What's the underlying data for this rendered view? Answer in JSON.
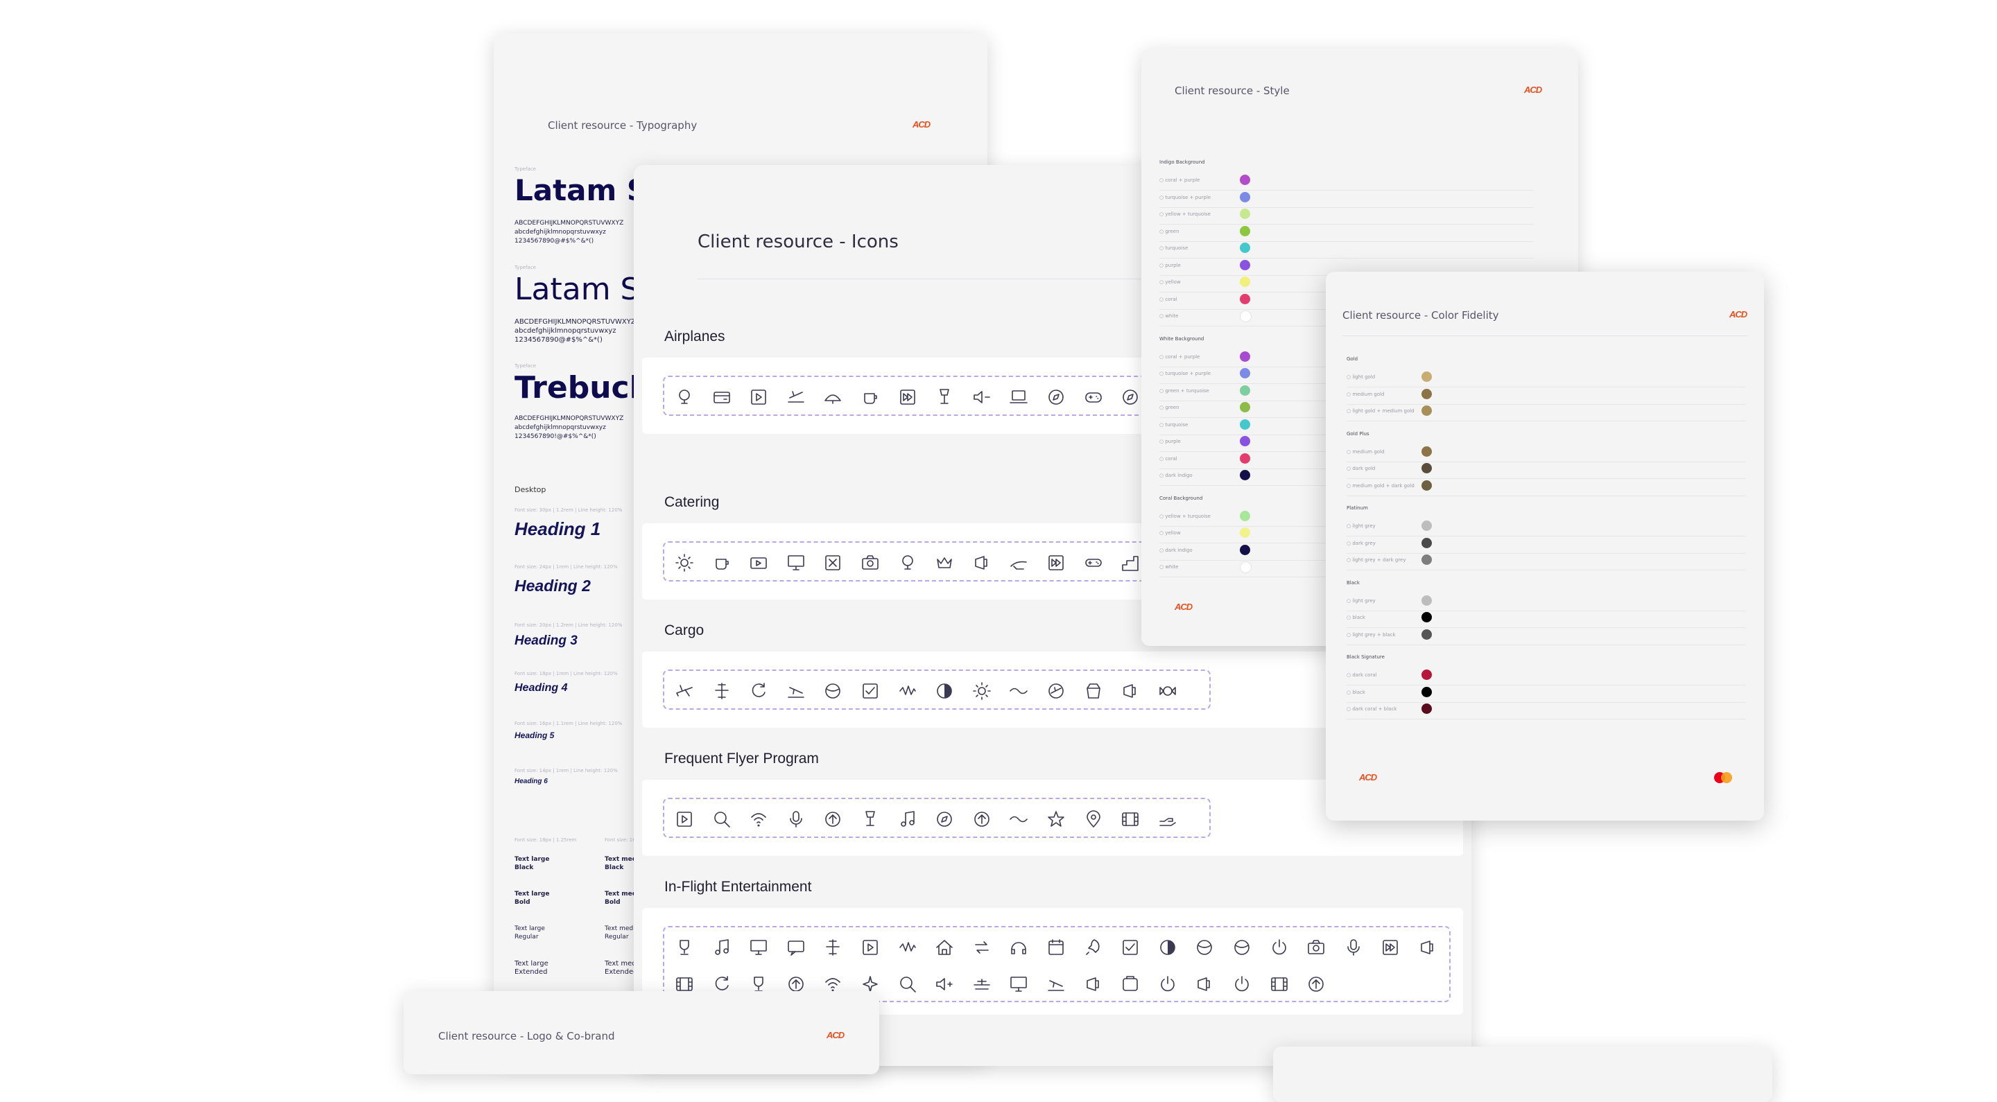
{
  "brand_logo": "ACD",
  "typography": {
    "title": "Client resource - Typography",
    "sections": [
      {
        "label": "Typeface",
        "name": "Latam Sa",
        "chars": [
          "ABCDEFGHIJKLMNOPQRSTUVWXYZ",
          "abcdefghijklmnopqrstuvwxyz",
          "1234567890@#$%^&*()"
        ]
      },
      {
        "label": "Typeface",
        "name": "Latam S",
        "chars": [
          "ABCDEFGHIJKLMNOPQRSTUVWXYZ",
          "abcdefghijklmnopqrstuvwxyz",
          "1234567890@#$%^&*()"
        ]
      },
      {
        "label": "Typeface",
        "name": "Trebuch",
        "chars": [
          "ABCDEFGHIJKLMNOPQRSTUVWXYZ",
          "abcdefghijklmnopqrstuvwxyz",
          "1234567890!@#$%^&*()"
        ]
      }
    ],
    "desktop_label": "Desktop",
    "headings": [
      {
        "meta": "Font size: 30px | 1.2rem | Line height: 120%",
        "text": "Heading 1"
      },
      {
        "meta": "Font size: 24px | 1rem | Line height: 120%",
        "text": "Heading 2"
      },
      {
        "meta": "Font size: 20px | 1.2rem | Line height: 120%",
        "text": "Heading 3"
      },
      {
        "meta": "Font size: 18px | 1rem | Line height: 120%",
        "text": "Heading 4"
      },
      {
        "meta": "Font size: 16px | 1.1rem | Line height: 120%",
        "text": "Heading 5"
      },
      {
        "meta": "Font size: 14px | 1rem | Line height: 120%",
        "text": "Heading 6"
      }
    ],
    "text_styles_left": [
      {
        "meta": "Font size: 18px | 1.25rem",
        "l1": "Text large",
        "l2": "Black"
      },
      {
        "meta": "",
        "l1": "Text large",
        "l2": "Bold"
      },
      {
        "meta": "",
        "l1": "Text large",
        "l2": "Regular"
      },
      {
        "meta": "",
        "l1": "Text large",
        "l2": "Extended"
      }
    ],
    "text_styles_right": [
      {
        "meta": "Font size: 16px",
        "l1": "Text medium",
        "l2": "Black"
      },
      {
        "meta": "",
        "l1": "Text medium",
        "l2": "Bold"
      },
      {
        "meta": "",
        "l1": "Text medium",
        "l2": "Regular"
      },
      {
        "meta": "",
        "l1": "Text medium",
        "l2": "Extended"
      }
    ]
  },
  "icons_card": {
    "title": "Client resource - Icons",
    "sections": [
      {
        "title": "Airplanes",
        "icons": [
          "plane-takeoff-icon",
          "globe-plane-icon",
          "globe-route-icon",
          "plane-rotate-icon",
          "plane-dome-icon",
          "plane-departure-icon",
          "plane-arrival-icon",
          "plane-ground-icon",
          "calendar-plane-icon",
          "heart-plane-icon",
          "plane-hand-icon",
          "plane-crown-icon",
          "plane-wave-icon",
          "plane-hand-left-icon",
          "plane-ticket-icon"
        ]
      },
      {
        "title": "Catering",
        "icons": [
          "cocktail-icon",
          "coffee-cup-icon",
          "soup-bowl-icon",
          "cutlery-icon",
          "bottles-icon",
          "tea-cup-icon",
          "candy-icon",
          "fish-icon",
          "bread-icon",
          "cheese-icon",
          "juice-box-icon",
          "jar-icon",
          "dish-icon"
        ]
      },
      {
        "title": "Cargo",
        "icons": [
          "ramp-icon",
          "plane-rotate-icon",
          "pet-icon",
          "flower-box-icon",
          "link-icon",
          "at-sign-icon",
          "boxes-icon",
          "diamond-icon",
          "package-icon",
          "secure-box-icon",
          "vaccine-icon",
          "horse-icon",
          "delivery-box-icon",
          "lock-tag-icon"
        ]
      },
      {
        "title": "Frequent Flyer Program",
        "icons": [
          "lightbulb-icon",
          "podium-icon",
          "hand-coins-icon",
          "star-icon",
          "rocket-icon",
          "compass-icon",
          "trophy-icon",
          "exchange-icon",
          "chat-icon",
          "location-pin-icon",
          "search-icon",
          "hand-swap-icon",
          "sparkle-icon",
          "hand-plane-icon"
        ]
      },
      {
        "title": "In-Flight Entertainment",
        "icons": [
          "gamepad-icon",
          "wifi-icon",
          "wallet-icon",
          "video-card-icon",
          "headphones-icon",
          "volume-up-icon",
          "volume-down-icon",
          "mute-icon",
          "play-icon",
          "music-note-icon",
          "close-box-icon",
          "check-box-icon",
          "play-box-icon",
          "pause-box-icon",
          "stop-box-icon",
          "book-icon",
          "eject-box-icon",
          "forward-box-icon",
          "rewind-box-icon",
          "brightness-icon",
          "contrast-icon",
          "speaker-icon",
          "lightbulb-icon",
          "microphone-icon",
          "film-icon",
          "power-icon",
          "laptop-icon",
          "monitor-icon",
          "tv-icon",
          "screen-icon",
          "radio-icon",
          "camera-icon",
          "usb-icon",
          "controller-icon",
          "wave-icon",
          "home-icon",
          "refresh-icon",
          "upload-icon",
          "download-icon"
        ]
      }
    ]
  },
  "style_card": {
    "title": "Client resource - Style",
    "groups": [
      {
        "label": "Indigo Background",
        "items": [
          {
            "name": "coral + purple",
            "color": "#b44bc9"
          },
          {
            "name": "turquoise + purple",
            "color": "#7a8ae6"
          },
          {
            "name": "yellow + turquoise",
            "color": "#c8e890"
          },
          {
            "name": "green",
            "color": "#8dc63f"
          },
          {
            "name": "turquoise",
            "color": "#45c8cc"
          },
          {
            "name": "purple",
            "color": "#8a52e0"
          },
          {
            "name": "yellow",
            "color": "#f0f07a"
          },
          {
            "name": "coral",
            "color": "#e43c6e"
          },
          {
            "name": "white",
            "color": "#ffffff"
          }
        ]
      },
      {
        "label": "White Background",
        "items": [
          {
            "name": "coral + purple",
            "color": "#a84bd0"
          },
          {
            "name": "turquoise + purple",
            "color": "#7a8ae6"
          },
          {
            "name": "green + turquoise",
            "color": "#7dcfa0"
          },
          {
            "name": "green",
            "color": "#8dbb48"
          },
          {
            "name": "turquoise",
            "color": "#45c8cc"
          },
          {
            "name": "purple",
            "color": "#8a52e0"
          },
          {
            "name": "coral",
            "color": "#e43c6e"
          },
          {
            "name": "dark indigo",
            "color": "#14104a"
          }
        ]
      },
      {
        "label": "Coral Background",
        "items": [
          {
            "name": "yellow + turquoise",
            "color": "#a8e69a"
          },
          {
            "name": "yellow",
            "color": "#f2f28c"
          },
          {
            "name": "dark indigo",
            "color": "#14104a"
          },
          {
            "name": "white",
            "color": "#ffffff"
          }
        ]
      }
    ]
  },
  "color_card": {
    "title": "Client resource - Color Fidelity",
    "groups": [
      {
        "label": "Gold",
        "items": [
          {
            "name": "light gold",
            "color": "#c8ad72"
          },
          {
            "name": "medium gold",
            "color": "#8c7446"
          },
          {
            "name": "light gold + medium gold",
            "color": "#a88f5a"
          }
        ]
      },
      {
        "label": "Gold Plus",
        "items": [
          {
            "name": "medium gold",
            "color": "#8c7446"
          },
          {
            "name": "dark gold",
            "color": "#5a4e3a"
          },
          {
            "name": "medium gold + dark gold",
            "color": "#6e6042"
          }
        ]
      },
      {
        "label": "Platinum",
        "items": [
          {
            "name": "light grey",
            "color": "#bdbdbd"
          },
          {
            "name": "dark grey",
            "color": "#4a4a4a"
          },
          {
            "name": "light grey + dark grey",
            "color": "#7e7e7e"
          }
        ]
      },
      {
        "label": "Black",
        "items": [
          {
            "name": "light grey",
            "color": "#bdbdbd"
          },
          {
            "name": "black",
            "color": "#000000"
          },
          {
            "name": "light grey + black",
            "color": "#555555"
          }
        ]
      },
      {
        "label": "Black Signature",
        "items": [
          {
            "name": "dark coral",
            "color": "#b5163a"
          },
          {
            "name": "black",
            "color": "#000000"
          },
          {
            "name": "dark coral + black",
            "color": "#5a0b1e"
          }
        ]
      }
    ]
  },
  "logo_card": {
    "title": "Client resource - Logo & Co-brand"
  }
}
